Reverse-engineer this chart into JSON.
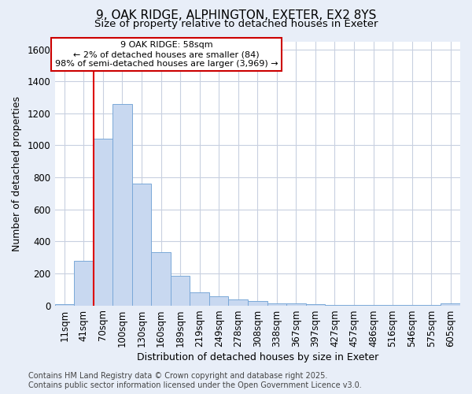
{
  "title_line1": "9, OAK RIDGE, ALPHINGTON, EXETER, EX2 8YS",
  "title_line2": "Size of property relative to detached houses in Exeter",
  "xlabel": "Distribution of detached houses by size in Exeter",
  "ylabel": "Number of detached properties",
  "categories": [
    "11sqm",
    "41sqm",
    "70sqm",
    "100sqm",
    "130sqm",
    "160sqm",
    "189sqm",
    "219sqm",
    "249sqm",
    "278sqm",
    "308sqm",
    "338sqm",
    "367sqm",
    "397sqm",
    "427sqm",
    "457sqm",
    "486sqm",
    "516sqm",
    "546sqm",
    "575sqm",
    "605sqm"
  ],
  "values": [
    10,
    280,
    1040,
    1260,
    760,
    335,
    185,
    80,
    55,
    38,
    25,
    15,
    15,
    8,
    2,
    2,
    2,
    2,
    2,
    2,
    12
  ],
  "bar_color": "#c8d8f0",
  "bar_edge_color": "#7aa8d8",
  "bar_edge_width": 0.7,
  "vline_x": 1.5,
  "vline_color": "#dd0000",
  "annotation_line1": "9 OAK RIDGE: 58sqm",
  "annotation_line2": "← 2% of detached houses are smaller (84)",
  "annotation_line3": "98% of semi-detached houses are larger (3,969) →",
  "annotation_box_facecolor": "#ffffff",
  "annotation_box_edgecolor": "#cc0000",
  "ylim": [
    0,
    1650
  ],
  "yticks": [
    0,
    200,
    400,
    600,
    800,
    1000,
    1200,
    1400,
    1600
  ],
  "plot_bg_color": "#ffffff",
  "fig_bg_color": "#e8eef8",
  "grid_color": "#c8d0e0",
  "footer_line1": "Contains HM Land Registry data © Crown copyright and database right 2025.",
  "footer_line2": "Contains public sector information licensed under the Open Government Licence v3.0.",
  "title_fontsize": 11,
  "subtitle_fontsize": 9.5,
  "axis_label_fontsize": 9,
  "tick_fontsize": 8.5,
  "annotation_fontsize": 8,
  "footer_fontsize": 7
}
